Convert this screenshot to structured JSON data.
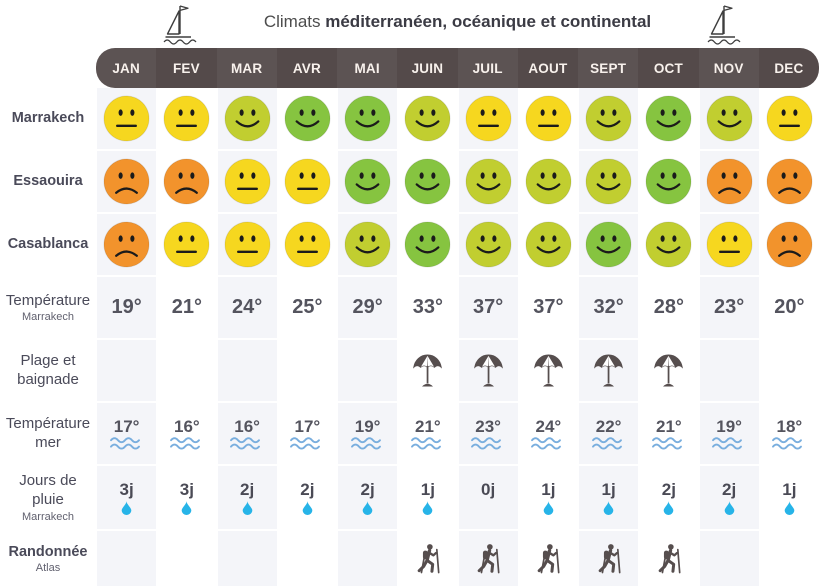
{
  "title": {
    "prefix": "Climats",
    "bold": "méditerranéen, océanique et continental"
  },
  "months": [
    "JAN",
    "FEV",
    "MAR",
    "AVR",
    "MAI",
    "JUIN",
    "JUIL",
    "AOUT",
    "SEPT",
    "OCT",
    "NOV",
    "DEC"
  ],
  "palette": {
    "green": "#86c440",
    "yellow_green": "#c1ce30",
    "yellow": "#f6d71f",
    "orange": "#f2932c",
    "face_features": "#1b1b1b",
    "header_bg": "#544a4a",
    "column_stripe": "#f4f5f9",
    "wave_blue": "#79aede",
    "drop_blue": "#27b4e8",
    "icon_gray": "#564e4e",
    "label_color": "#4a4a59",
    "value_color": "#54545e"
  },
  "rows": [
    {
      "type": "smiley",
      "label_lines": [
        "Marrakech"
      ],
      "cells": [
        {
          "mood": "neutral",
          "tone": "yellow"
        },
        {
          "mood": "neutral",
          "tone": "yellow"
        },
        {
          "mood": "smile",
          "tone": "yellow_green"
        },
        {
          "mood": "smile",
          "tone": "green"
        },
        {
          "mood": "smile",
          "tone": "green"
        },
        {
          "mood": "smile",
          "tone": "yellow_green"
        },
        {
          "mood": "neutral",
          "tone": "yellow"
        },
        {
          "mood": "neutral",
          "tone": "yellow"
        },
        {
          "mood": "smile",
          "tone": "yellow_green"
        },
        {
          "mood": "smile",
          "tone": "green"
        },
        {
          "mood": "smile",
          "tone": "yellow_green"
        },
        {
          "mood": "neutral",
          "tone": "yellow"
        }
      ]
    },
    {
      "type": "smiley",
      "label_lines": [
        "Essaouira"
      ],
      "cells": [
        {
          "mood": "frown",
          "tone": "orange"
        },
        {
          "mood": "frown",
          "tone": "orange"
        },
        {
          "mood": "neutral",
          "tone": "yellow"
        },
        {
          "mood": "neutral",
          "tone": "yellow"
        },
        {
          "mood": "smile",
          "tone": "green"
        },
        {
          "mood": "smile",
          "tone": "green"
        },
        {
          "mood": "smile",
          "tone": "yellow_green"
        },
        {
          "mood": "smile",
          "tone": "yellow_green"
        },
        {
          "mood": "smile",
          "tone": "yellow_green"
        },
        {
          "mood": "smile",
          "tone": "green"
        },
        {
          "mood": "frown",
          "tone": "orange"
        },
        {
          "mood": "frown",
          "tone": "orange"
        }
      ]
    },
    {
      "type": "smiley",
      "label_lines": [
        "Casablanca"
      ],
      "cells": [
        {
          "mood": "frown",
          "tone": "orange"
        },
        {
          "mood": "neutral",
          "tone": "yellow"
        },
        {
          "mood": "neutral",
          "tone": "yellow"
        },
        {
          "mood": "neutral",
          "tone": "yellow"
        },
        {
          "mood": "smile",
          "tone": "yellow_green"
        },
        {
          "mood": "smile",
          "tone": "green"
        },
        {
          "mood": "smile",
          "tone": "yellow_green"
        },
        {
          "mood": "smile",
          "tone": "yellow_green"
        },
        {
          "mood": "smile",
          "tone": "green"
        },
        {
          "mood": "smile",
          "tone": "yellow_green"
        },
        {
          "mood": "neutral",
          "tone": "yellow"
        },
        {
          "mood": "frown",
          "tone": "orange"
        }
      ]
    },
    {
      "type": "temp",
      "label_lines": [
        "Température"
      ],
      "sublabel": "Marrakech",
      "cells": [
        "19°",
        "21°",
        "24°",
        "25°",
        "29°",
        "33°",
        "37°",
        "37°",
        "32°",
        "28°",
        "23°",
        "20°"
      ]
    },
    {
      "type": "beach",
      "label_lines": [
        "Plage et",
        "baignade"
      ],
      "cells": [
        false,
        false,
        false,
        false,
        false,
        true,
        true,
        true,
        true,
        true,
        false,
        false
      ]
    },
    {
      "type": "sea",
      "label_lines": [
        "Température",
        "mer"
      ],
      "cells": [
        "17°",
        "16°",
        "16°",
        "17°",
        "19°",
        "21°",
        "23°",
        "24°",
        "22°",
        "21°",
        "19°",
        "18°"
      ]
    },
    {
      "type": "rain",
      "label_lines": [
        "Jours de",
        "pluie"
      ],
      "sublabel": "Marrakech",
      "cells": [
        {
          "value": "3j",
          "drop": true
        },
        {
          "value": "3j",
          "drop": true
        },
        {
          "value": "2j",
          "drop": true
        },
        {
          "value": "2j",
          "drop": true
        },
        {
          "value": "2j",
          "drop": true
        },
        {
          "value": "1j",
          "drop": true
        },
        {
          "value": "0j",
          "drop": false
        },
        {
          "value": "1j",
          "drop": true
        },
        {
          "value": "1j",
          "drop": true
        },
        {
          "value": "2j",
          "drop": true
        },
        {
          "value": "2j",
          "drop": true
        },
        {
          "value": "1j",
          "drop": true
        }
      ]
    },
    {
      "type": "hike",
      "label_lines": [
        "Randonnée"
      ],
      "sublabel": "Atlas",
      "cells": [
        false,
        false,
        false,
        false,
        false,
        true,
        true,
        true,
        true,
        true,
        false,
        false
      ]
    }
  ],
  "chart_data": {
    "type": "table",
    "title": "Climats méditerranéen, océanique et continental",
    "columns": [
      "JAN",
      "FEV",
      "MAR",
      "AVR",
      "MAI",
      "JUIN",
      "JUIL",
      "AOUT",
      "SEPT",
      "OCT",
      "NOV",
      "DEC"
    ],
    "rows": [
      {
        "label": "Marrakech",
        "unit": "climate rating",
        "values": [
          "neutral",
          "neutral",
          "good",
          "great",
          "great",
          "good",
          "neutral",
          "neutral",
          "good",
          "great",
          "good",
          "neutral"
        ]
      },
      {
        "label": "Essaouira",
        "unit": "climate rating",
        "values": [
          "bad",
          "bad",
          "neutral",
          "neutral",
          "great",
          "great",
          "good",
          "good",
          "good",
          "great",
          "bad",
          "bad"
        ]
      },
      {
        "label": "Casablanca",
        "unit": "climate rating",
        "values": [
          "bad",
          "neutral",
          "neutral",
          "neutral",
          "good",
          "great",
          "good",
          "good",
          "great",
          "good",
          "neutral",
          "bad"
        ]
      },
      {
        "label": "Température Marrakech",
        "unit": "°C",
        "values": [
          19,
          21,
          24,
          25,
          29,
          33,
          37,
          37,
          32,
          28,
          23,
          20
        ]
      },
      {
        "label": "Plage et baignade",
        "unit": "recommended",
        "values": [
          false,
          false,
          false,
          false,
          false,
          true,
          true,
          true,
          true,
          true,
          false,
          false
        ]
      },
      {
        "label": "Température mer",
        "unit": "°C",
        "values": [
          17,
          16,
          16,
          17,
          19,
          21,
          23,
          24,
          22,
          21,
          19,
          18
        ]
      },
      {
        "label": "Jours de pluie Marrakech",
        "unit": "jours",
        "values": [
          3,
          3,
          2,
          2,
          2,
          1,
          0,
          1,
          1,
          2,
          2,
          1
        ]
      },
      {
        "label": "Randonnée Atlas",
        "unit": "recommended",
        "values": [
          false,
          false,
          false,
          false,
          false,
          true,
          true,
          true,
          true,
          true,
          false,
          false
        ]
      }
    ],
    "legend_position": "none",
    "grid": "column-stripes"
  }
}
